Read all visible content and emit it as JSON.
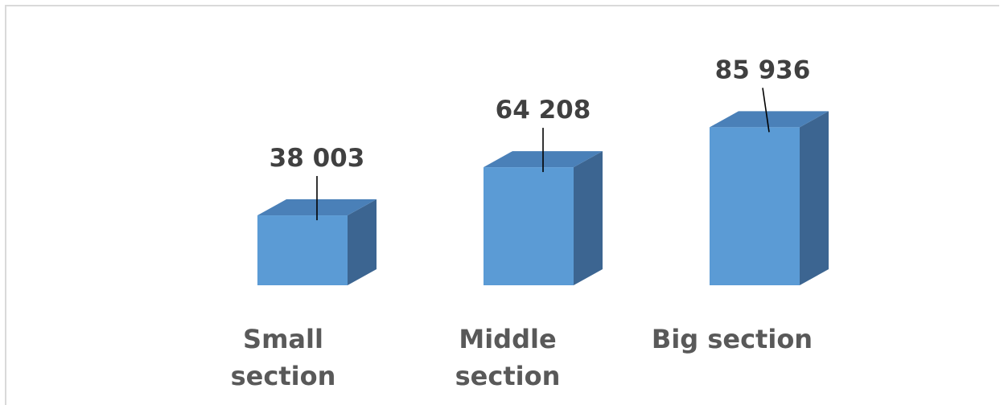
{
  "chart_data": {
    "type": "bar",
    "style": "3d-column",
    "categories": [
      [
        "Small",
        "section"
      ],
      [
        "Middle",
        "section"
      ],
      [
        "Big section"
      ]
    ],
    "values": [
      38003,
      64208,
      85936
    ],
    "data_labels": [
      "38 003",
      "64 208",
      "85 936"
    ],
    "title": "",
    "xlabel": "",
    "ylabel": "",
    "grid": false,
    "legend": "none",
    "colors": {
      "bar_front": "#5b9bd5",
      "bar_top": "#4a80b8",
      "bar_side": "#3c6591",
      "data_label": "#404040",
      "category_label": "#595959",
      "frame_border": "#d9d9d9"
    }
  }
}
